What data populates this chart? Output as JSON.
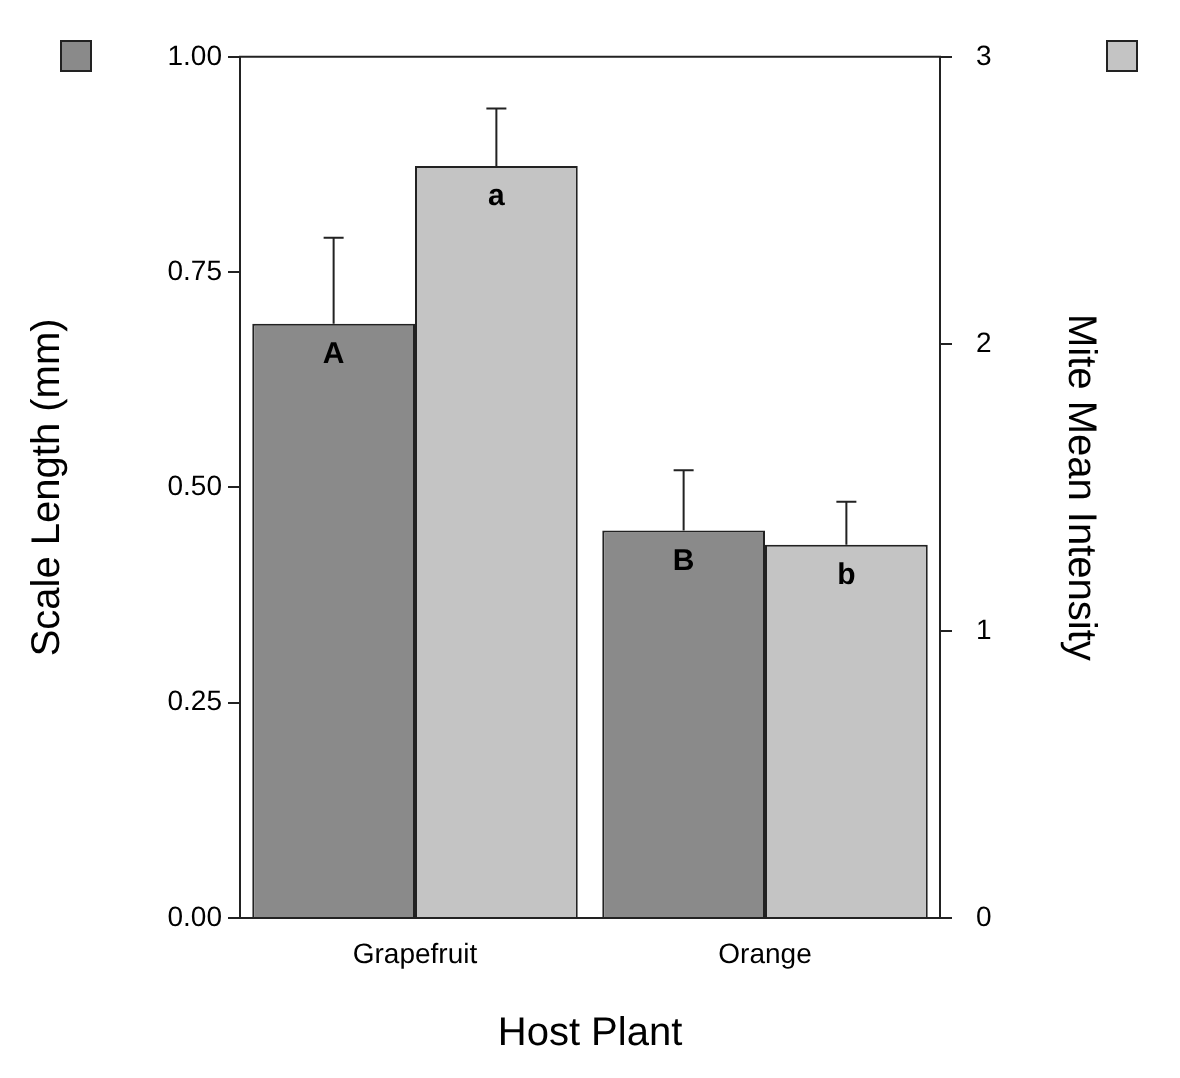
{
  "chart_data": {
    "type": "bar",
    "xlabel": "Host Plant",
    "ylabel": "Scale Length (mm)",
    "y2label": "Mite Mean Intensity",
    "categories": [
      "Grapefruit",
      "Orange"
    ],
    "series": [
      {
        "color": "#8a8a8a",
        "values": [
          0.69,
          0.45
        ],
        "errors": [
          [
            0.69,
            0.79
          ],
          [
            0.45,
            0.52
          ]
        ],
        "value_labels": [
          "A",
          "B"
        ]
      },
      {
        "color": "#c4c4c4",
        "values": [
          2.62,
          1.3
        ],
        "errors": [
          [
            2.62,
            2.82
          ],
          [
            1.3,
            1.45
          ]
        ],
        "value_labels": [
          "a",
          "b"
        ],
        "axis": "y2"
      }
    ],
    "ylim": [
      0,
      1
    ],
    "yticks": [
      {
        "value": 0,
        "label": "0.00"
      },
      {
        "value": 0.25,
        "label": "0.25"
      },
      {
        "value": 0.5,
        "label": "0.50"
      },
      {
        "value": 0.75,
        "label": "0.75"
      },
      {
        "value": 1,
        "label": "1.00"
      }
    ],
    "y2lim": [
      0,
      3
    ],
    "y2ticks": [
      0,
      1,
      2,
      3
    ],
    "grid": false,
    "legend": false
  }
}
